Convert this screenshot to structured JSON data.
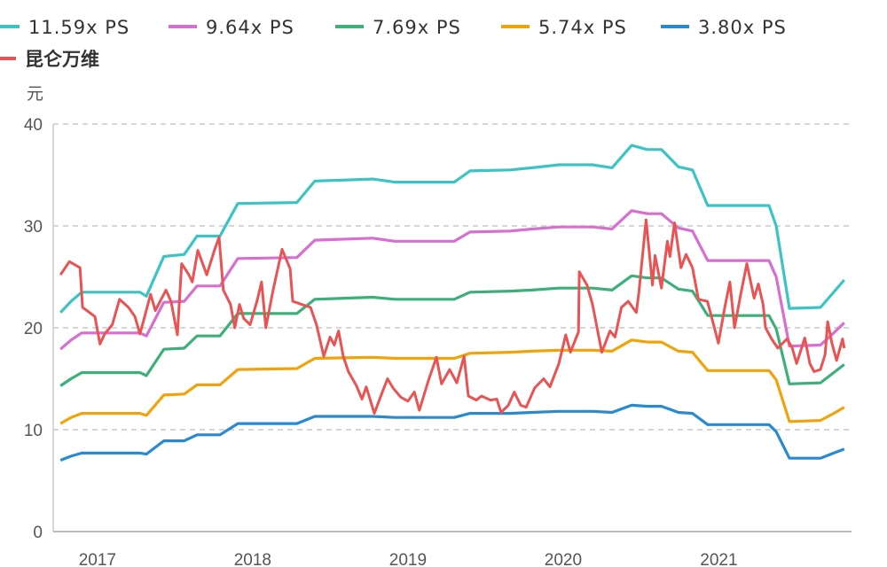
{
  "chart_data": {
    "type": "line",
    "title": "",
    "ylabel": "元",
    "xlabel": "",
    "ylim": [
      0,
      40
    ],
    "yticks": [
      0,
      10,
      20,
      30,
      40
    ],
    "xlim": [
      "2016-09-19",
      "2021-11-09"
    ],
    "xticks": [
      {
        "date": "2017-01-01",
        "label": "2017"
      },
      {
        "date": "2018-01-01",
        "label": "2018"
      },
      {
        "date": "2019-01-01",
        "label": "2019"
      },
      {
        "date": "2020-01-01",
        "label": "2020"
      },
      {
        "date": "2021-01-01",
        "label": "2021"
      }
    ],
    "grid": "horizontal dashed",
    "legend_position": "top",
    "band_dates": [
      "2016-10-06",
      "2016-10-31",
      "2016-11-25",
      "2017-04-11",
      "2017-04-26",
      "2017-06-06",
      "2017-07-24",
      "2017-08-23",
      "2017-10-16",
      "2017-11-27",
      "2018-04-15",
      "2018-05-27",
      "2018-10-10",
      "2018-12-01",
      "2019-04-20",
      "2019-05-27",
      "2019-08-29",
      "2019-10-20",
      "2019-12-22",
      "2020-03-10",
      "2020-04-25",
      "2020-06-10",
      "2020-07-17",
      "2020-08-19",
      "2020-09-28",
      "2020-10-31",
      "2020-12-06",
      "2021-04-29",
      "2021-05-16",
      "2021-06-16",
      "2021-08-28",
      "2021-09-28",
      "2021-10-23"
    ],
    "series": [
      {
        "name": "11.59x PS",
        "color": "#3cc4c4",
        "kind": "band",
        "values": [
          21.5,
          22.6,
          23.5,
          23.5,
          23.1,
          27.0,
          27.2,
          29.0,
          29.0,
          32.2,
          32.3,
          34.4,
          34.6,
          34.3,
          34.3,
          35.4,
          35.5,
          35.7,
          36.0,
          36.0,
          35.7,
          37.9,
          37.5,
          37.5,
          35.8,
          35.5,
          32.0,
          32.0,
          30.0,
          21.9,
          22.0,
          23.5,
          24.7
        ]
      },
      {
        "name": "9.64x PS",
        "color": "#d66fcf",
        "kind": "band",
        "values": [
          17.9,
          18.8,
          19.5,
          19.5,
          19.2,
          22.5,
          22.6,
          24.1,
          24.1,
          26.8,
          26.9,
          28.6,
          28.8,
          28.5,
          28.5,
          29.4,
          29.5,
          29.7,
          29.9,
          29.9,
          29.7,
          31.5,
          31.2,
          31.2,
          29.8,
          29.5,
          26.6,
          26.6,
          25.0,
          18.2,
          18.3,
          19.5,
          20.5
        ]
      },
      {
        "name": "7.69x PS",
        "color": "#3daf7a",
        "kind": "band",
        "values": [
          14.3,
          15.0,
          15.6,
          15.6,
          15.3,
          17.9,
          18.0,
          19.2,
          19.2,
          21.4,
          21.4,
          22.8,
          23.0,
          22.8,
          22.8,
          23.5,
          23.6,
          23.7,
          23.9,
          23.9,
          23.7,
          25.1,
          24.9,
          24.9,
          23.8,
          23.6,
          21.2,
          21.2,
          19.9,
          14.5,
          14.6,
          15.6,
          16.4
        ]
      },
      {
        "name": "5.74x PS",
        "color": "#f0a30a",
        "kind": "band",
        "values": [
          10.6,
          11.2,
          11.6,
          11.6,
          11.4,
          13.4,
          13.5,
          14.4,
          14.4,
          15.9,
          16.0,
          17.0,
          17.1,
          17.0,
          17.0,
          17.5,
          17.6,
          17.7,
          17.8,
          17.8,
          17.7,
          18.8,
          18.6,
          18.6,
          17.7,
          17.6,
          15.8,
          15.8,
          14.9,
          10.8,
          10.9,
          11.6,
          12.2
        ]
      },
      {
        "name": "3.80x PS",
        "color": "#2a8ad0",
        "kind": "band",
        "values": [
          7.0,
          7.4,
          7.7,
          7.7,
          7.6,
          8.9,
          8.9,
          9.5,
          9.5,
          10.6,
          10.6,
          11.3,
          11.3,
          11.2,
          11.2,
          11.6,
          11.6,
          11.7,
          11.8,
          11.8,
          11.7,
          12.4,
          12.3,
          12.3,
          11.7,
          11.6,
          10.5,
          10.5,
          9.8,
          7.2,
          7.2,
          7.7,
          8.1
        ]
      },
      {
        "name": "昆仑万维",
        "color": "#e85454",
        "kind": "price",
        "points": [
          [
            "2016-10-06",
            25.2
          ],
          [
            "2016-10-27",
            26.5
          ],
          [
            "2016-11-21",
            25.9
          ],
          [
            "2016-11-27",
            22.0
          ],
          [
            "2016-12-07",
            21.7
          ],
          [
            "2016-12-26",
            21.1
          ],
          [
            "2017-01-07",
            18.4
          ],
          [
            "2017-01-18",
            19.4
          ],
          [
            "2017-02-05",
            20.3
          ],
          [
            "2017-02-22",
            22.8
          ],
          [
            "2017-03-15",
            22.0
          ],
          [
            "2017-03-30",
            21.1
          ],
          [
            "2017-04-11",
            19.4
          ],
          [
            "2017-04-22",
            21.1
          ],
          [
            "2017-05-06",
            23.3
          ],
          [
            "2017-05-17",
            21.7
          ],
          [
            "2017-06-11",
            23.7
          ],
          [
            "2017-06-23",
            22.6
          ],
          [
            "2017-07-08",
            19.3
          ],
          [
            "2017-07-18",
            26.3
          ],
          [
            "2017-08-04",
            25.2
          ],
          [
            "2017-08-12",
            24.5
          ],
          [
            "2017-08-25",
            27.6
          ],
          [
            "2017-09-15",
            25.2
          ],
          [
            "2017-10-03",
            27.6
          ],
          [
            "2017-10-14",
            28.9
          ],
          [
            "2017-10-24",
            23.7
          ],
          [
            "2017-11-10",
            22.3
          ],
          [
            "2017-11-20",
            20.0
          ],
          [
            "2017-12-01",
            22.3
          ],
          [
            "2017-12-11",
            20.9
          ],
          [
            "2017-12-26",
            20.3
          ],
          [
            "2018-01-11",
            22.6
          ],
          [
            "2018-01-22",
            24.5
          ],
          [
            "2018-02-01",
            20.0
          ],
          [
            "2018-02-18",
            23.7
          ],
          [
            "2018-03-11",
            27.7
          ],
          [
            "2018-03-30",
            25.8
          ],
          [
            "2018-04-05",
            22.6
          ],
          [
            "2018-04-26",
            22.3
          ],
          [
            "2018-05-17",
            22.0
          ],
          [
            "2018-05-31",
            20.3
          ],
          [
            "2018-06-17",
            17.2
          ],
          [
            "2018-07-02",
            19.1
          ],
          [
            "2018-07-12",
            18.3
          ],
          [
            "2018-07-22",
            19.7
          ],
          [
            "2018-08-02",
            17.2
          ],
          [
            "2018-08-14",
            15.7
          ],
          [
            "2018-09-02",
            14.3
          ],
          [
            "2018-09-15",
            13.0
          ],
          [
            "2018-09-25",
            14.2
          ],
          [
            "2018-10-14",
            11.6
          ],
          [
            "2018-10-31",
            13.5
          ],
          [
            "2018-11-14",
            15.0
          ],
          [
            "2018-11-27",
            14.1
          ],
          [
            "2018-12-15",
            13.2
          ],
          [
            "2019-01-01",
            12.8
          ],
          [
            "2019-01-16",
            13.7
          ],
          [
            "2019-01-28",
            11.9
          ],
          [
            "2019-02-18",
            14.8
          ],
          [
            "2019-03-09",
            17.1
          ],
          [
            "2019-03-21",
            14.5
          ],
          [
            "2019-04-09",
            15.9
          ],
          [
            "2019-04-26",
            14.6
          ],
          [
            "2019-05-13",
            17.2
          ],
          [
            "2019-05-23",
            13.3
          ],
          [
            "2019-06-11",
            12.9
          ],
          [
            "2019-06-23",
            13.3
          ],
          [
            "2019-07-14",
            12.9
          ],
          [
            "2019-07-29",
            13.0
          ],
          [
            "2019-08-08",
            11.7
          ],
          [
            "2019-08-25",
            12.4
          ],
          [
            "2019-09-08",
            13.7
          ],
          [
            "2019-09-23",
            12.4
          ],
          [
            "2019-10-06",
            12.2
          ],
          [
            "2019-10-26",
            14.1
          ],
          [
            "2019-11-16",
            15.0
          ],
          [
            "2019-12-01",
            14.2
          ],
          [
            "2019-12-22",
            16.5
          ],
          [
            "2020-01-07",
            19.3
          ],
          [
            "2020-01-18",
            17.6
          ],
          [
            "2020-02-06",
            19.6
          ],
          [
            "2020-02-08",
            25.5
          ],
          [
            "2020-02-26",
            24.2
          ],
          [
            "2020-03-10",
            22.3
          ],
          [
            "2020-04-01",
            17.6
          ],
          [
            "2020-04-20",
            19.7
          ],
          [
            "2020-05-02",
            19.1
          ],
          [
            "2020-05-17",
            22.0
          ],
          [
            "2020-06-02",
            22.6
          ],
          [
            "2020-06-21",
            21.5
          ],
          [
            "2020-06-27",
            23.5
          ],
          [
            "2020-07-14",
            30.6
          ],
          [
            "2020-07-29",
            24.2
          ],
          [
            "2020-08-04",
            27.1
          ],
          [
            "2020-08-19",
            23.9
          ],
          [
            "2020-09-02",
            28.5
          ],
          [
            "2020-09-08",
            27.0
          ],
          [
            "2020-09-19",
            30.3
          ],
          [
            "2020-10-04",
            25.9
          ],
          [
            "2020-10-16",
            27.2
          ],
          [
            "2020-10-31",
            25.9
          ],
          [
            "2020-11-14",
            22.8
          ],
          [
            "2020-12-05",
            22.6
          ],
          [
            "2020-12-16",
            20.9
          ],
          [
            "2020-12-31",
            18.5
          ],
          [
            "2021-01-15",
            22.0
          ],
          [
            "2021-01-27",
            24.5
          ],
          [
            "2021-02-07",
            20.0
          ],
          [
            "2021-02-21",
            23.2
          ],
          [
            "2021-03-08",
            26.3
          ],
          [
            "2021-03-25",
            22.9
          ],
          [
            "2021-04-04",
            24.3
          ],
          [
            "2021-04-15",
            22.3
          ],
          [
            "2021-04-21",
            20.0
          ],
          [
            "2021-05-05",
            18.9
          ],
          [
            "2021-05-20",
            18.0
          ],
          [
            "2021-06-10",
            18.9
          ],
          [
            "2021-06-22",
            18.1
          ],
          [
            "2021-07-03",
            16.5
          ],
          [
            "2021-07-22",
            19.0
          ],
          [
            "2021-08-03",
            16.5
          ],
          [
            "2021-08-13",
            15.7
          ],
          [
            "2021-08-28",
            15.9
          ],
          [
            "2021-09-08",
            17.4
          ],
          [
            "2021-09-14",
            20.6
          ],
          [
            "2021-09-24",
            18.5
          ],
          [
            "2021-10-05",
            16.8
          ],
          [
            "2021-10-19",
            18.9
          ],
          [
            "2021-10-23",
            18.0
          ]
        ]
      }
    ]
  }
}
